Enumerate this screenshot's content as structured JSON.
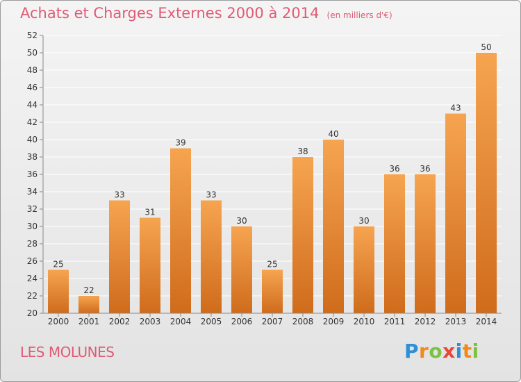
{
  "header": {
    "title": "Achats et Charges Externes 2000 à 2014",
    "unit": "(en milliers d'€)"
  },
  "footer": {
    "commune": "LES MOLUNES",
    "logo": "Proxiti"
  },
  "colors": {
    "bar_light": "#f6a450",
    "bar_dark": "#cf6c1c",
    "title": "#e05a74",
    "grid": "#ffffff",
    "axis": "#888888"
  },
  "chart_data": {
    "type": "bar",
    "title": "Achats et Charges Externes 2000 à 2014",
    "subtitle": "(en milliers d'€)",
    "xlabel": "",
    "ylabel": "",
    "categories": [
      "2000",
      "2001",
      "2002",
      "2003",
      "2004",
      "2005",
      "2006",
      "2007",
      "2008",
      "2009",
      "2010",
      "2011",
      "2012",
      "2013",
      "2014"
    ],
    "values": [
      25,
      22,
      33,
      31,
      39,
      33,
      30,
      25,
      38,
      40,
      30,
      36,
      36,
      43,
      50
    ],
    "ylim": [
      20,
      52
    ],
    "yticks": [
      20,
      22,
      24,
      26,
      28,
      30,
      32,
      34,
      36,
      38,
      40,
      42,
      44,
      46,
      48,
      50,
      52
    ],
    "grid": true,
    "legend": "none"
  }
}
